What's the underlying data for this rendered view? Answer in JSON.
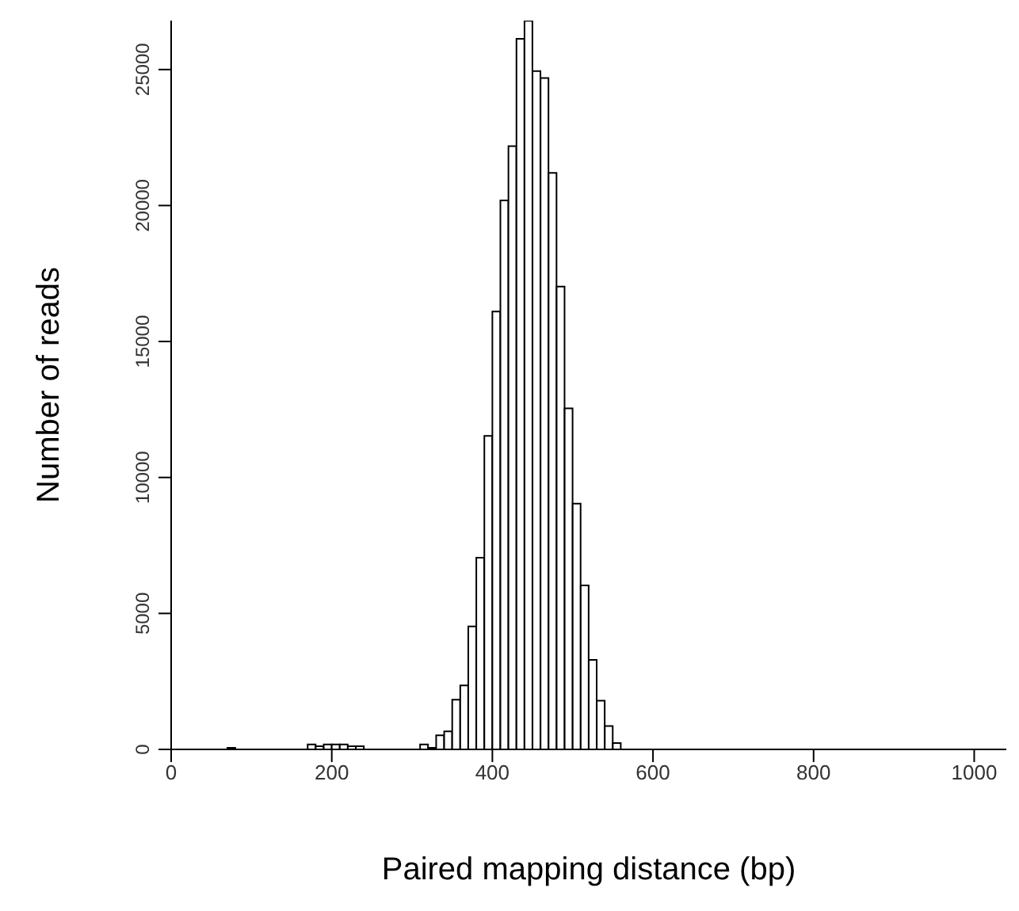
{
  "chart_data": {
    "type": "histogram",
    "xlabel": "Paired mapping distance (bp)",
    "ylabel": "Number of reads",
    "bins": [
      0,
      10,
      20,
      30,
      40,
      50,
      60,
      70,
      80,
      90,
      100,
      110,
      120,
      130,
      140,
      150,
      160,
      170,
      180,
      190,
      200,
      210,
      220,
      230,
      240,
      250,
      260,
      270,
      280,
      290,
      300,
      310,
      320,
      330,
      340,
      350,
      360,
      370,
      380,
      390,
      400,
      410,
      420,
      430,
      440,
      450,
      460,
      470,
      480,
      490,
      500,
      510,
      520,
      530,
      540,
      550,
      560,
      570,
      580,
      590,
      600,
      610,
      620,
      630,
      640,
      650,
      660,
      670,
      680,
      690,
      700,
      710,
      720,
      730,
      740,
      750,
      760,
      770,
      780,
      790,
      800,
      810,
      820,
      830,
      840,
      850,
      860,
      870,
      880,
      890,
      900,
      910,
      920,
      930,
      940,
      950,
      960,
      970,
      980,
      990,
      1000,
      1010,
      1020,
      1030,
      1040
    ],
    "values": [
      0,
      0,
      0,
      0,
      0,
      0,
      0,
      60,
      0,
      0,
      0,
      0,
      0,
      0,
      0,
      0,
      0,
      180,
      120,
      180,
      180,
      180,
      120,
      120,
      null,
      null,
      null,
      null,
      null,
      null,
      0,
      180,
      60,
      520,
      660,
      1830,
      2350,
      4520,
      7050,
      11530,
      16100,
      20190,
      22180,
      26130,
      26790,
      24940,
      24690,
      21200,
      17020,
      12540,
      9040,
      6030,
      3290,
      1790,
      860,
      230,
      null,
      0,
      0,
      0,
      0,
      0,
      0,
      0,
      0,
      0,
      0,
      0,
      0,
      0,
      0,
      0,
      0,
      0,
      0,
      0,
      0,
      0,
      0,
      0,
      0,
      0,
      0,
      0,
      0,
      0,
      0,
      0,
      0,
      0,
      0,
      0,
      0,
      0,
      0,
      0,
      0,
      0,
      0,
      0,
      0,
      0,
      0,
      0
    ],
    "color": "#ffffff",
    "xlim": [
      0,
      1040
    ],
    "xticks": [
      0,
      200,
      400,
      600,
      800,
      1000
    ],
    "ylim": [
      0,
      26800
    ],
    "yticks": [
      0,
      5000,
      10000,
      15000,
      20000,
      25000
    ],
    "grid": false,
    "legend": false
  }
}
